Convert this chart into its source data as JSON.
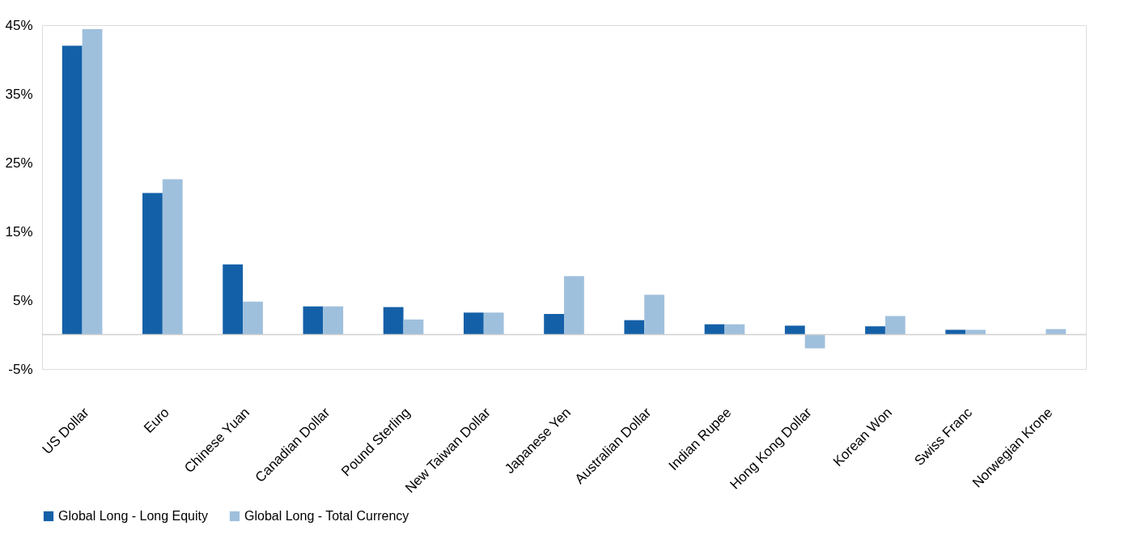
{
  "chart_data": {
    "type": "bar",
    "categories": [
      "US Dollar",
      "Euro",
      "Chinese Yuan",
      "Canadian Dollar",
      "Pound Sterling",
      "New Taiwan Dollar",
      "Japanese Yen",
      "Australian Dollar",
      "Indian Rupee",
      "Hong Kong Dollar",
      "Korean Won",
      "Swiss Franc",
      "Norwegian Krone"
    ],
    "series": [
      {
        "name": "Global Long  - Long Equity",
        "color": "#1460a8",
        "values": [
          42.0,
          20.6,
          10.2,
          4.1,
          4.0,
          3.2,
          3.0,
          2.1,
          1.5,
          1.3,
          1.2,
          0.7,
          null
        ]
      },
      {
        "name": "Global Long  - Total Currency",
        "color": "#9fc0dd",
        "values": [
          44.4,
          22.6,
          4.8,
          4.1,
          2.2,
          3.2,
          8.5,
          5.8,
          1.5,
          -2.0,
          2.7,
          0.7,
          0.8
        ]
      }
    ],
    "ylim": [
      -5,
      45
    ],
    "yticks": [
      {
        "value": 45,
        "label": "45%"
      },
      {
        "value": 35,
        "label": "35%"
      },
      {
        "value": 25,
        "label": "25%"
      },
      {
        "value": 15,
        "label": "15%"
      },
      {
        "value": 5,
        "label": "5%"
      },
      {
        "value": -5,
        "label": "-5%"
      }
    ],
    "grid": false,
    "legend": "bottom"
  }
}
